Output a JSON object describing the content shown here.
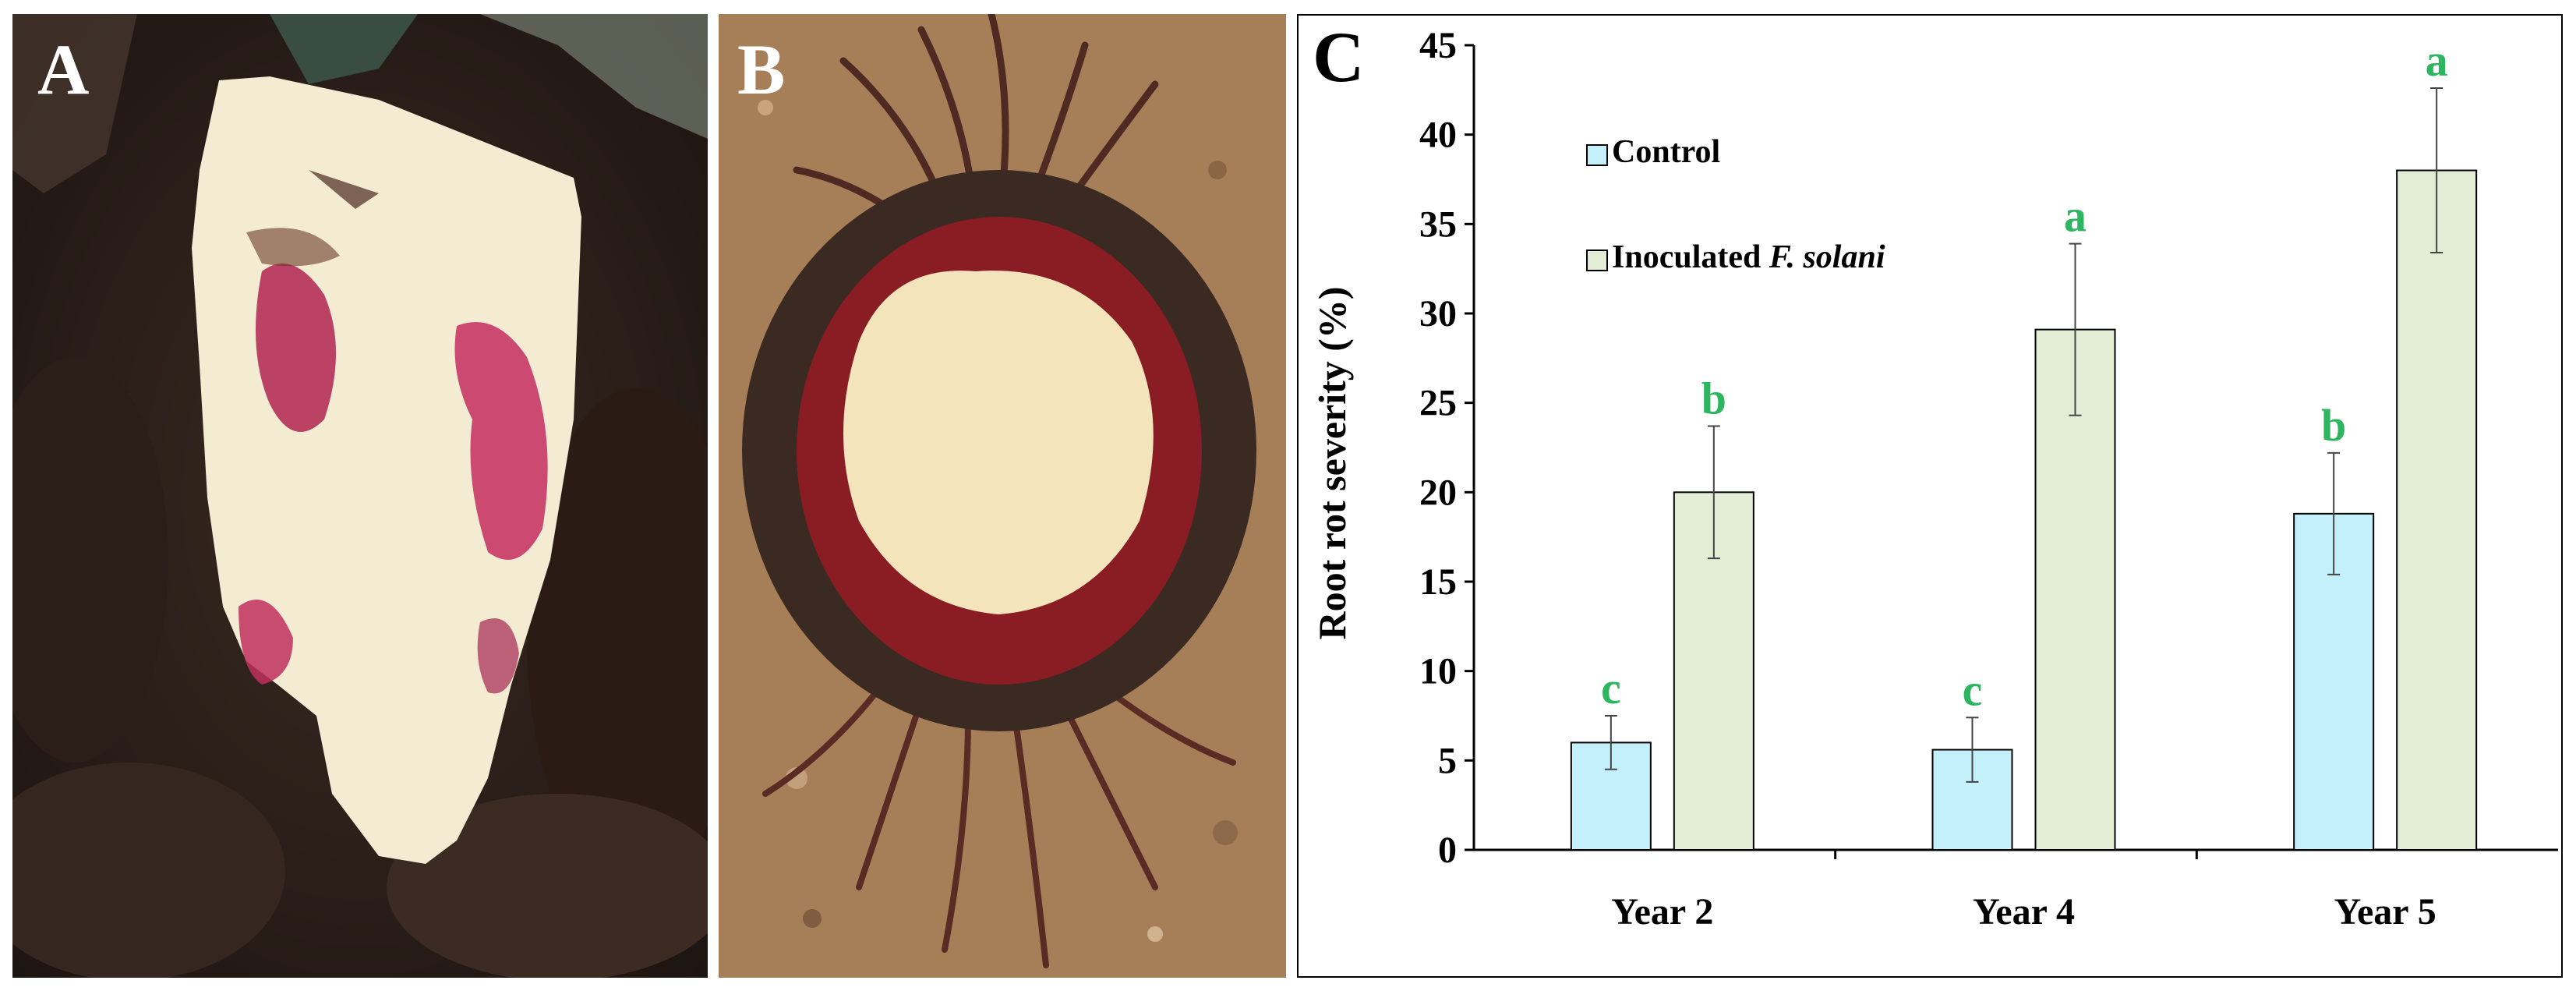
{
  "panels": {
    "a": {
      "letter": "A"
    },
    "b": {
      "letter": "B"
    },
    "c": {
      "letter": "C"
    }
  },
  "colors": {
    "control": "#c3f0fb",
    "inoculated": "#e3ecd4",
    "significance": "#2db560",
    "panel_a_letter": "#ffffff",
    "panel_b_letter": "#ffffff",
    "panel_c_letter": "#000000"
  },
  "chart_data": {
    "type": "bar",
    "title": "",
    "xlabel": "",
    "ylabel": "Root rot severity (%)",
    "ylim": [
      0,
      45
    ],
    "yticks": [
      0,
      5,
      10,
      15,
      20,
      25,
      30,
      35,
      40,
      45
    ],
    "grid": false,
    "legend_position": "top-left",
    "categories": [
      "Year 2",
      "Year 4",
      "Year 5"
    ],
    "series": [
      {
        "name": "Control",
        "values": [
          6.0,
          5.6,
          18.8
        ],
        "errors": [
          1.5,
          1.8,
          3.4
        ],
        "letters": [
          "c",
          "c",
          "b"
        ]
      },
      {
        "name": "Inoculated F. solani",
        "name_parts": {
          "plain": "Inoculated ",
          "italic": "F. solani"
        },
        "values": [
          20.0,
          29.1,
          38.0
        ],
        "errors": [
          3.7,
          4.8,
          4.6
        ],
        "letters": [
          "b",
          "a",
          "a"
        ]
      }
    ]
  }
}
